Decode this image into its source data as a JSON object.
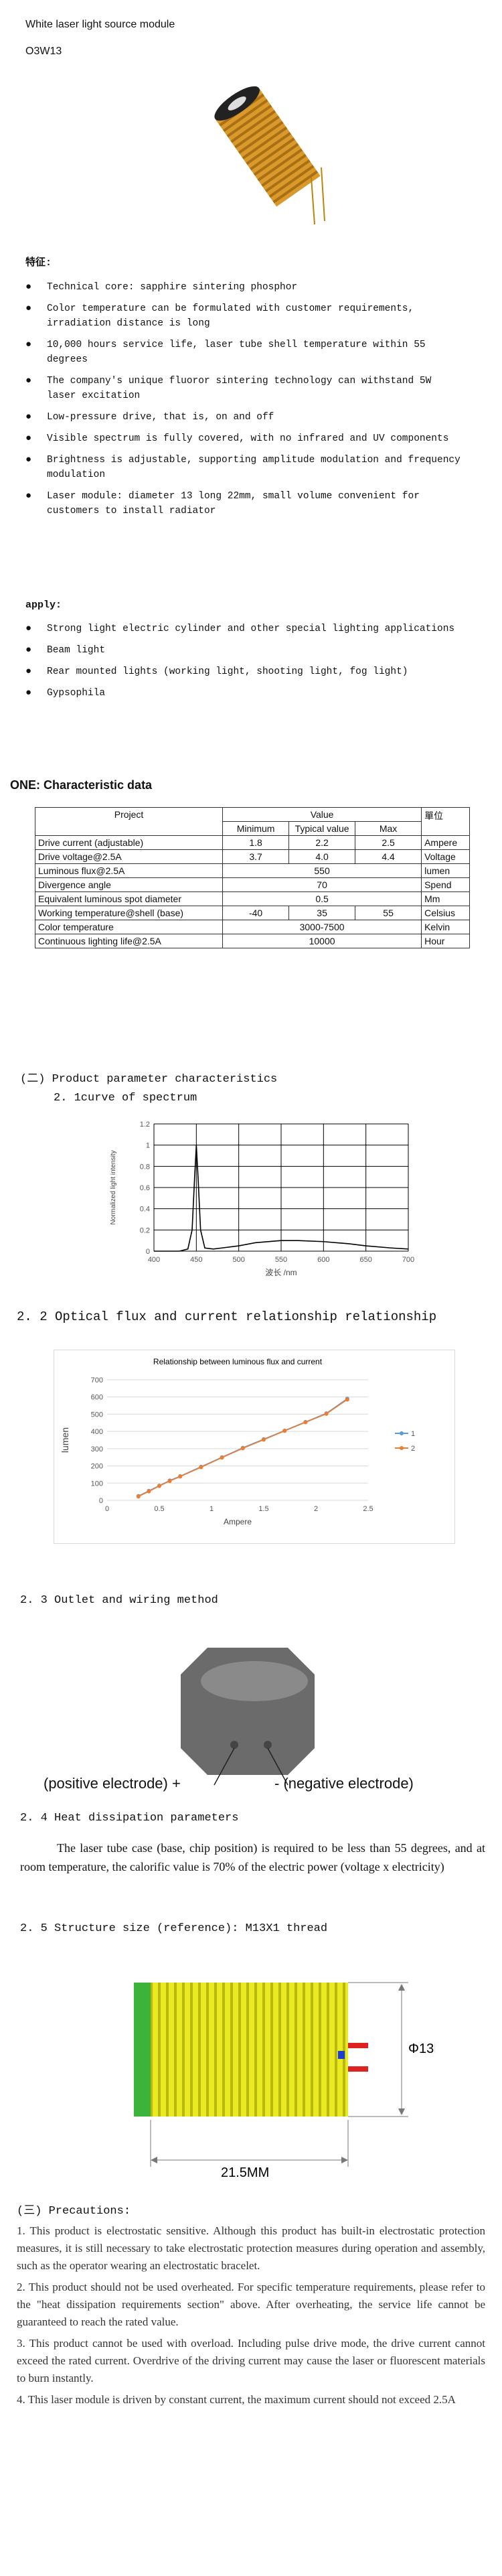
{
  "header": {
    "title": "White laser light source module",
    "model": "O3W13"
  },
  "features": {
    "heading": "特征:",
    "items": [
      "Technical core: sapphire sintering phosphor",
      "Color temperature can be formulated with customer requirements, irradiation distance is long",
      "10,000 hours service life, laser tube shell temperature within 55 degrees",
      "The company's unique fluoror sintering technology can withstand 5W laser excitation",
      "Low-pressure drive, that is, on and off",
      "Visible spectrum is fully covered, with no infrared and UV components",
      "Brightness is adjustable, supporting amplitude modulation and frequency modulation",
      "Laser module: diameter 13 long 22mm, small volume convenient for customers to install radiator"
    ]
  },
  "apply": {
    "heading": "apply:",
    "items": [
      "Strong light electric cylinder and other special lighting applications",
      "Beam light",
      "Rear mounted lights (working light, shooting light, fog light)",
      "Gypsophila"
    ]
  },
  "characteristics": {
    "heading": "ONE: Characteristic data",
    "table": {
      "header": [
        "Project",
        "Value",
        "單位"
      ],
      "subheader": [
        "Minimum",
        "Typical value",
        "Max"
      ],
      "rows": [
        [
          "Drive current (adjustable)",
          "1.8",
          "2.2",
          "2.5",
          "Ampere"
        ],
        [
          "Drive voltage@2.5A",
          "3.7",
          "4.0",
          "4.4",
          "Voltage"
        ],
        [
          "Luminous flux@2.5A",
          "550",
          "lumen"
        ],
        [
          "Divergence angle",
          "70",
          "Spend"
        ],
        [
          "Equivalent luminous spot diameter",
          "0.5",
          "Mm"
        ],
        [
          "Working temperature@shell (base)",
          "-40",
          "35",
          "55",
          "Celsius"
        ],
        [
          "Color temperature",
          "3000-7500",
          "Kelvin"
        ],
        [
          "Continuous lighting life@2.5A",
          "10000",
          "Hour"
        ]
      ]
    }
  },
  "parameters": {
    "heading": "(二) Product parameter characteristics",
    "spectrum": {
      "heading": "2. 1curve of spectrum",
      "chart": {
        "type": "line",
        "xlabel": "波长 /nm",
        "ylabel": "Normalized light intensity",
        "xlim": [
          400,
          700
        ],
        "xticks": [
          400,
          450,
          500,
          550,
          600,
          650,
          700
        ],
        "ylim": [
          0,
          1.2
        ],
        "yticks": [
          0,
          0.2,
          0.4,
          0.6,
          0.8,
          1,
          1.2
        ],
        "grid": "both",
        "color": "#000000",
        "x": [
          400,
          430,
          440,
          445,
          448,
          450,
          452,
          455,
          460,
          470,
          480,
          500,
          520,
          550,
          570,
          600,
          630,
          650,
          680,
          700
        ],
        "values": [
          0,
          0,
          0.02,
          0.2,
          0.7,
          1.0,
          0.7,
          0.2,
          0.03,
          0.02,
          0.03,
          0.05,
          0.08,
          0.1,
          0.1,
          0.09,
          0.07,
          0.05,
          0.03,
          0.02
        ]
      }
    },
    "flux": {
      "heading": "2. 2 Optical flux and current relationship relationship",
      "chart": {
        "type": "line",
        "title": "Relationship between luminous flux and current",
        "xlabel": "Ampere",
        "ylabel": "lumen",
        "xlim": [
          0,
          2.5
        ],
        "xticks": [
          0,
          0.5,
          1,
          1.5,
          2,
          2.5
        ],
        "ylim": [
          0,
          700
        ],
        "yticks": [
          0,
          100,
          200,
          300,
          400,
          500,
          600,
          700
        ],
        "grid": "y",
        "markers": true,
        "legend": "right",
        "x": [
          0.3,
          0.4,
          0.5,
          0.6,
          0.7,
          0.9,
          1.1,
          1.3,
          1.5,
          1.7,
          1.9,
          2.1,
          2.3
        ],
        "series": [
          {
            "name": "1",
            "color": "#5b9bd5",
            "values": [
              25,
              55,
              85,
              115,
              140,
              195,
              250,
              305,
              355,
              405,
              455,
              505,
              590
            ]
          },
          {
            "name": "2",
            "color": "#ed7d31",
            "values": [
              22,
              52,
              83,
              112,
              138,
              192,
              248,
              302,
              352,
              403,
              453,
              502,
              585
            ]
          }
        ]
      }
    },
    "wiring": {
      "heading": "2. 3 Outlet and wiring method",
      "positive": "(positive electrode) +",
      "negative": "- (negative electrode)"
    },
    "heat": {
      "heading": "2. 4 Heat dissipation parameters",
      "text": "The laser tube case (base, chip position) is required to be less than 55 degrees, and at room temperature, the calorific value is 70% of the electric power (voltage x electricity)"
    },
    "structure": {
      "heading": "2. 5 Structure size (reference): M13X1 thread",
      "diameter": "Φ13MM",
      "length": "21.5MM"
    }
  },
  "precautions": {
    "heading": "(三) Precautions:",
    "items": [
      "1. This product is electrostatic sensitive. Although this product has built-in electrostatic protection measures, it is still necessary to take electrostatic protection measures during operation and assembly, such as the operator wearing an electrostatic bracelet.",
      "2. This product should not be used overheated. For specific temperature requirements, please refer to the \"heat dissipation requirements section\" above. After overheating, the service life cannot be guaranteed to reach the rated value.",
      "3. This product cannot be used with overload. Including pulse drive mode, the drive current cannot exceed the rated current. Overdrive of the driving current may cause the laser or fluorescent materials to burn instantly.",
      "4. This laser module is driven by constant current, the maximum current should not exceed 2.5A"
    ]
  }
}
